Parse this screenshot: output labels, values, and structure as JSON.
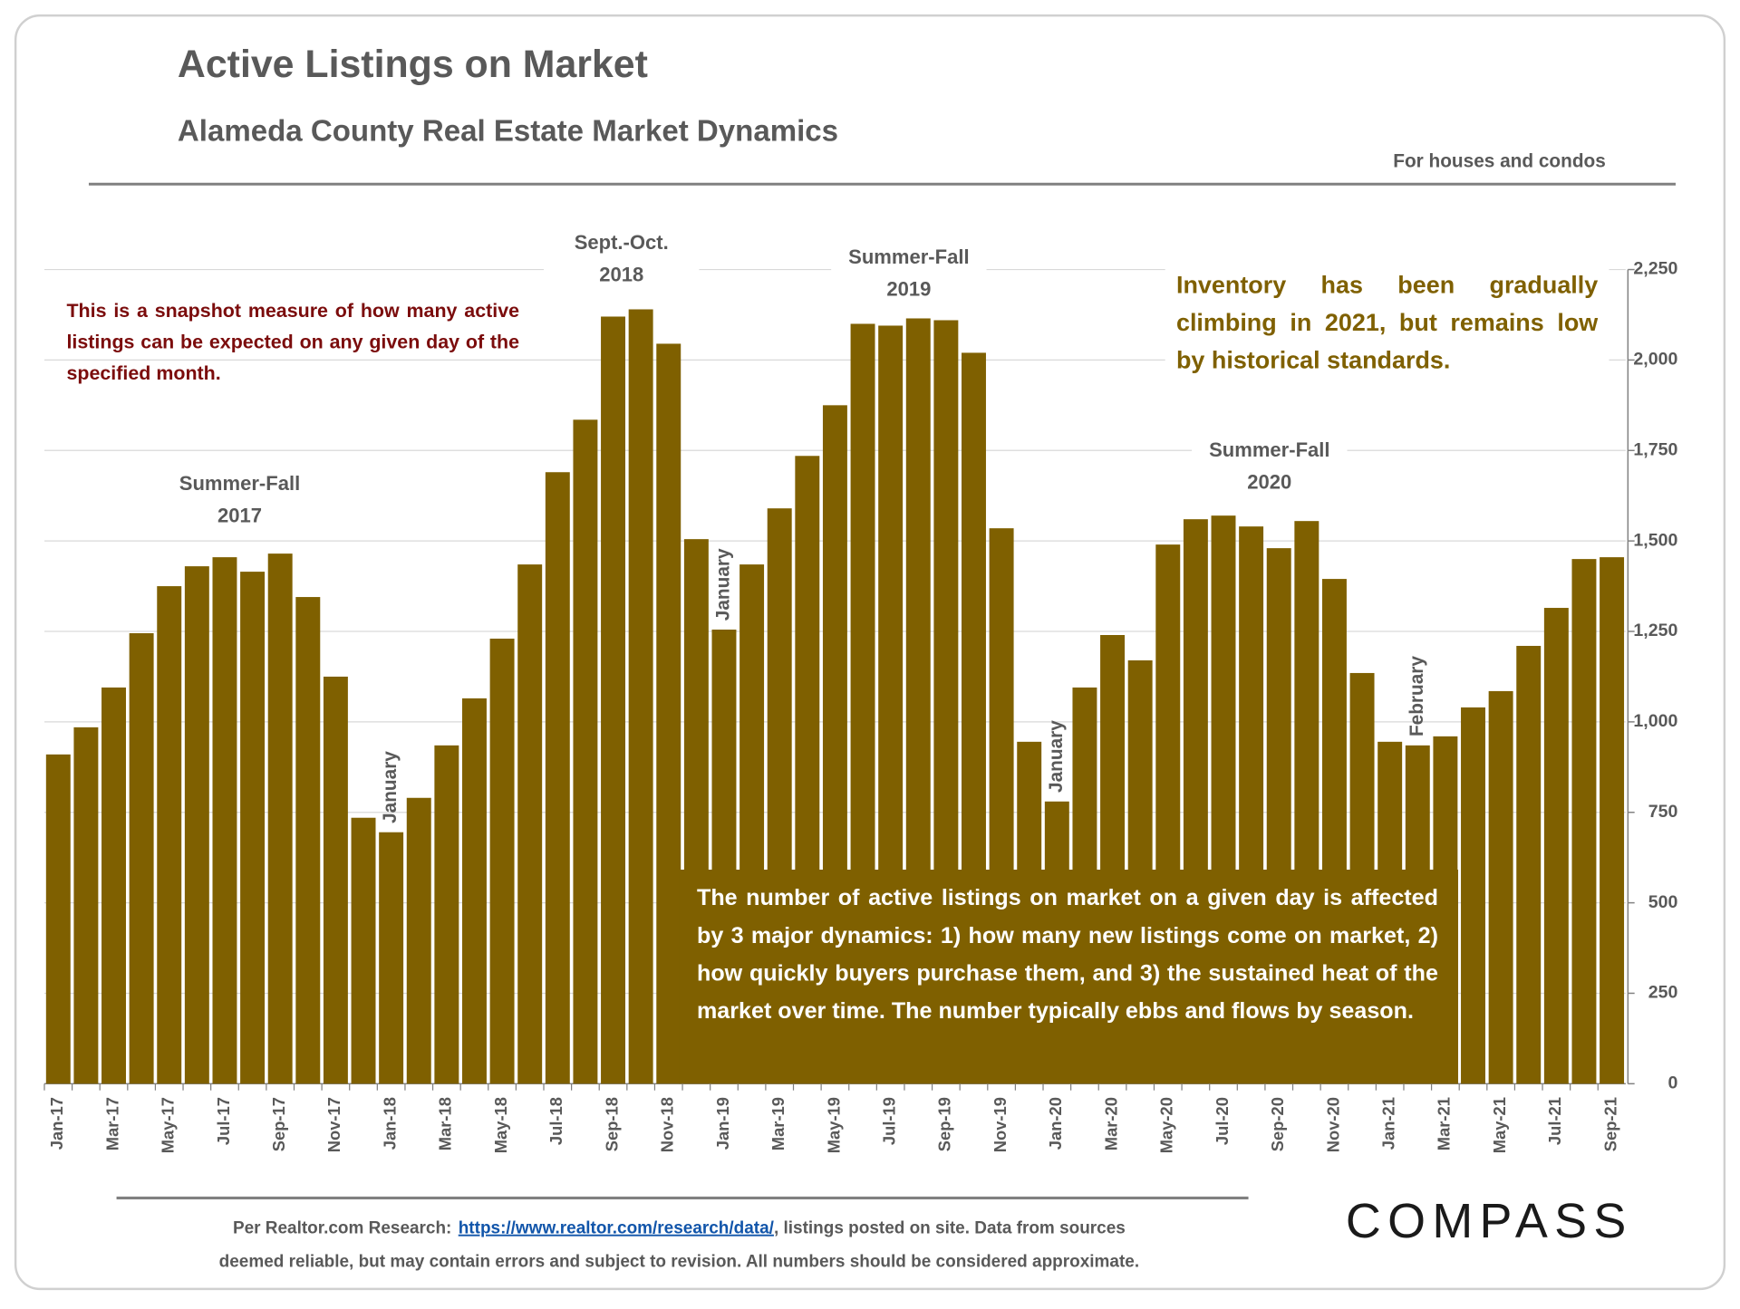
{
  "chart_data": {
    "type": "bar",
    "title": "Active Listings on Market",
    "subtitle": "Alameda County Real Estate Market Dynamics",
    "note": "For houses and condos",
    "color": "#7f6000",
    "categories": [
      "Jan-17",
      null,
      "Mar-17",
      null,
      "May-17",
      null,
      "Jul-17",
      null,
      "Sep-17",
      null,
      "Nov-17",
      null,
      "Jan-18",
      null,
      "Mar-18",
      null,
      "May-18",
      null,
      "Jul-18",
      null,
      "Sep-18",
      null,
      "Nov-18",
      null,
      "Jan-19",
      null,
      "Mar-19",
      null,
      "May-19",
      null,
      "Jul-19",
      null,
      "Sep-19",
      null,
      "Nov-19",
      null,
      "Jan-20",
      null,
      "Mar-20",
      null,
      "May-20",
      null,
      "Jul-20",
      null,
      "Sep-20",
      null,
      "Nov-20",
      null,
      "Jan-21",
      null,
      "Mar-21",
      null,
      "May-21",
      null,
      "Jul-21",
      null,
      "Sep-21"
    ],
    "values": [
      910,
      985,
      1095,
      1245,
      1375,
      1430,
      1455,
      1415,
      1465,
      1345,
      1125,
      735,
      695,
      790,
      935,
      1065,
      1230,
      1435,
      1690,
      1835,
      2120,
      2140,
      2045,
      1505,
      1255,
      1435,
      1590,
      1735,
      1875,
      2100,
      2095,
      2115,
      2110,
      2020,
      1535,
      945,
      780,
      1095,
      1240,
      1170,
      1490,
      1560,
      1570,
      1540,
      1480,
      1555,
      1395,
      1135,
      945,
      935,
      960,
      1040,
      1085,
      1210,
      1315,
      1450,
      1455
    ],
    "ylim": [
      0,
      2250
    ],
    "yticks": [
      0,
      250,
      500,
      750,
      {
        "value": 1000,
        "label": "1,000"
      },
      {
        "value": 1250,
        "label": "1,250"
      },
      {
        "value": 1500,
        "label": "1,500"
      },
      {
        "value": 1750,
        "label": "1,750"
      },
      {
        "value": 2000,
        "label": "2,000"
      },
      {
        "value": 2250,
        "label": "2,250"
      }
    ],
    "grid": true,
    "annotations": [
      [
        "Summer-Fall",
        "2017"
      ],
      [
        "Sept.-Oct.",
        "2018"
      ],
      [
        "Summer-Fall",
        "2019"
      ],
      [
        "Summer-Fall",
        "2020"
      ]
    ],
    "month_notes": [
      "January",
      "January",
      "January",
      "February"
    ],
    "snapshot_note": "This is a snapshot measure of how many active listings can be expected on any given day of the specified month.",
    "inventory_note": "Inventory has been gradually climbing in 2021, but remains low by historical standards.",
    "dynamics_note": "The number of active listings on market on a given day is affected by 3 major dynamics: 1) how many new listings come on market, 2) how quickly buyers purchase them, and 3) the sustained heat of the market over time. The number typically ebbs and flows by season."
  },
  "footer": {
    "source_prefix": "Per Realtor.com Research:",
    "source_link": "https://www.realtor.com/research/data/",
    "source_rest": ", listings posted on site. Data from sources",
    "disclaimer": "deemed reliable, but may contain errors and subject to revision. All numbers should be considered approximate.",
    "logo": "COMPASS"
  }
}
